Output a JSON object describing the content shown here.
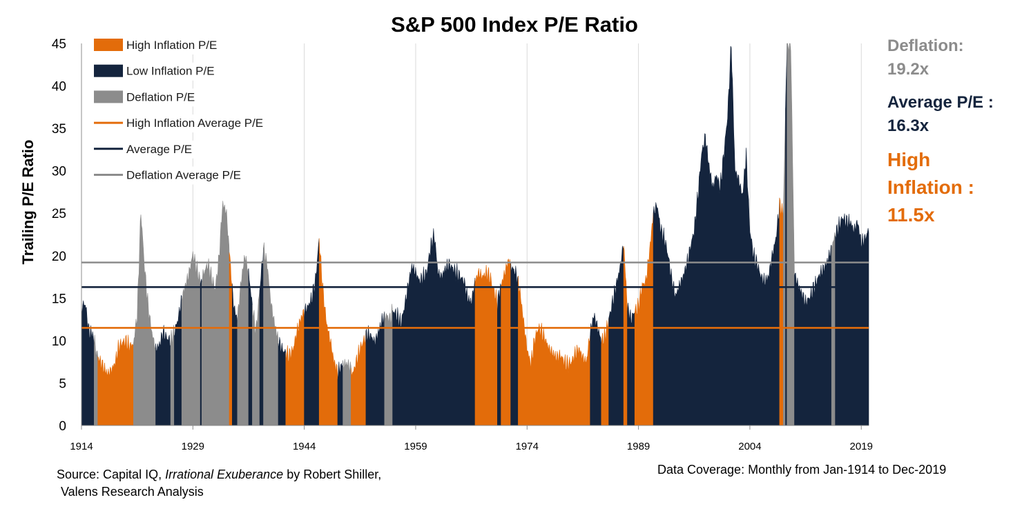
{
  "title": "S&P 500 Index P/E Ratio",
  "colors": {
    "high_inflation": "#e36c0a",
    "low_inflation": "#14243d",
    "deflation": "#8c8c8c"
  },
  "side_labels": {
    "deflation_label": "Deflation:",
    "deflation_value": "19.2x",
    "average_label": "Average P/E :",
    "average_value": "16.3x",
    "inflation_label_1": "High",
    "inflation_label_2": "Inflation :",
    "inflation_value": "11.5x"
  },
  "footer": {
    "source_prefix": "Source: Capital IQ, ",
    "source_italic": "Irrational Exuberance",
    "source_suffix": " by Robert Shiller,",
    "source_line2": "Valens Research Analysis",
    "coverage": "Data Coverage: Monthly from Jan-1914 to Dec-2019"
  },
  "chart_data": {
    "type": "area",
    "ylabel": "Trailing P/E Ratio",
    "xlabel": "",
    "ylim": [
      0,
      45
    ],
    "xlim": [
      1914,
      2020
    ],
    "yticks": [
      0,
      5,
      10,
      15,
      20,
      25,
      30,
      35,
      40,
      45
    ],
    "xticks": [
      1914,
      1929,
      1944,
      1959,
      1974,
      1989,
      2004,
      2019
    ],
    "x_gridlines": true,
    "legend_position": "top-left",
    "legend": [
      {
        "label": "High Inflation P/E",
        "kind": "area",
        "regime": "high"
      },
      {
        "label": "Low Inflation P/E",
        "kind": "area",
        "regime": "low"
      },
      {
        "label": "Deflation P/E",
        "kind": "area",
        "regime": "deflation"
      },
      {
        "label": "High Inflation Average P/E",
        "kind": "line",
        "regime": "high"
      },
      {
        "label": "Average P/E",
        "kind": "line",
        "regime": "low"
      },
      {
        "label": "Deflation Average P/E",
        "kind": "line",
        "regime": "deflation"
      }
    ],
    "reference_lines": [
      {
        "name": "Deflation Average P/E",
        "value": 19.2,
        "regime": "deflation"
      },
      {
        "name": "Average P/E",
        "value": 16.3,
        "regime": "low"
      },
      {
        "name": "High Inflation Average P/E",
        "value": 11.5,
        "regime": "high"
      }
    ],
    "pe_series": [
      [
        1914.0,
        13.9
      ],
      [
        1914.5,
        14.4
      ],
      [
        1915.0,
        11.0
      ],
      [
        1915.5,
        10.8
      ],
      [
        1916.0,
        8.6
      ],
      [
        1916.5,
        7.6
      ],
      [
        1917.0,
        6.8
      ],
      [
        1917.5,
        6.1
      ],
      [
        1918.0,
        6.5
      ],
      [
        1918.5,
        7.3
      ],
      [
        1919.0,
        9.2
      ],
      [
        1919.5,
        9.8
      ],
      [
        1920.0,
        9.9
      ],
      [
        1920.5,
        9.3
      ],
      [
        1921.0,
        9.7
      ],
      [
        1921.5,
        13.0
      ],
      [
        1922.0,
        25.2
      ],
      [
        1922.5,
        18.5
      ],
      [
        1923.0,
        13.8
      ],
      [
        1923.5,
        10.8
      ],
      [
        1924.0,
        9.0
      ],
      [
        1924.5,
        9.5
      ],
      [
        1925.0,
        11.0
      ],
      [
        1925.5,
        10.3
      ],
      [
        1926.0,
        10.0
      ],
      [
        1926.5,
        11.0
      ],
      [
        1927.0,
        12.5
      ],
      [
        1927.5,
        15.0
      ],
      [
        1928.0,
        16.5
      ],
      [
        1928.5,
        18.0
      ],
      [
        1929.0,
        20.2
      ],
      [
        1929.5,
        18.5
      ],
      [
        1930.0,
        17.0
      ],
      [
        1930.5,
        18.0
      ],
      [
        1931.0,
        19.0
      ],
      [
        1931.5,
        17.5
      ],
      [
        1932.0,
        16.0
      ],
      [
        1932.5,
        19.5
      ],
      [
        1933.0,
        26.1
      ],
      [
        1933.5,
        25.2
      ],
      [
        1934.0,
        19.5
      ],
      [
        1934.5,
        14.0
      ],
      [
        1935.0,
        12.5
      ],
      [
        1935.5,
        17.0
      ],
      [
        1936.0,
        20.0
      ],
      [
        1936.5,
        18.0
      ],
      [
        1937.0,
        14.0
      ],
      [
        1937.5,
        11.0
      ],
      [
        1938.0,
        16.0
      ],
      [
        1938.5,
        20.8
      ],
      [
        1939.0,
        19.0
      ],
      [
        1939.5,
        14.5
      ],
      [
        1940.0,
        12.0
      ],
      [
        1940.5,
        10.0
      ],
      [
        1941.0,
        9.0
      ],
      [
        1941.5,
        8.5
      ],
      [
        1942.0,
        8.2
      ],
      [
        1942.5,
        9.0
      ],
      [
        1943.0,
        11.0
      ],
      [
        1943.5,
        12.5
      ],
      [
        1944.0,
        13.5
      ],
      [
        1944.5,
        14.0
      ],
      [
        1945.0,
        15.0
      ],
      [
        1945.5,
        17.0
      ],
      [
        1946.0,
        22.0
      ],
      [
        1946.5,
        16.0
      ],
      [
        1947.0,
        12.0
      ],
      [
        1947.5,
        10.0
      ],
      [
        1948.0,
        7.5
      ],
      [
        1948.5,
        6.3
      ],
      [
        1949.0,
        7.0
      ],
      [
        1949.5,
        7.3
      ],
      [
        1950.0,
        7.2
      ],
      [
        1950.5,
        6.0
      ],
      [
        1951.0,
        7.5
      ],
      [
        1951.5,
        9.0
      ],
      [
        1952.0,
        10.0
      ],
      [
        1952.5,
        10.8
      ],
      [
        1953.0,
        10.5
      ],
      [
        1953.5,
        9.8
      ],
      [
        1954.0,
        11.0
      ],
      [
        1954.5,
        12.5
      ],
      [
        1955.0,
        13.0
      ],
      [
        1955.5,
        12.5
      ],
      [
        1956.0,
        13.5
      ],
      [
        1956.5,
        13.0
      ],
      [
        1957.0,
        12.0
      ],
      [
        1957.5,
        14.0
      ],
      [
        1958.0,
        16.5
      ],
      [
        1958.5,
        18.8
      ],
      [
        1959.0,
        18.0
      ],
      [
        1959.5,
        17.0
      ],
      [
        1960.0,
        17.5
      ],
      [
        1960.5,
        18.0
      ],
      [
        1961.0,
        21.0
      ],
      [
        1961.5,
        22.5
      ],
      [
        1962.0,
        18.0
      ],
      [
        1962.5,
        17.5
      ],
      [
        1963.0,
        18.5
      ],
      [
        1963.5,
        19.0
      ],
      [
        1964.0,
        18.5
      ],
      [
        1964.5,
        18.0
      ],
      [
        1965.0,
        17.5
      ],
      [
        1965.5,
        17.0
      ],
      [
        1966.0,
        15.0
      ],
      [
        1966.5,
        14.5
      ],
      [
        1967.0,
        17.0
      ],
      [
        1967.5,
        18.0
      ],
      [
        1968.0,
        17.5
      ],
      [
        1968.5,
        18.0
      ],
      [
        1969.0,
        17.5
      ],
      [
        1969.5,
        16.0
      ],
      [
        1970.0,
        14.5
      ],
      [
        1970.5,
        16.5
      ],
      [
        1971.0,
        18.0
      ],
      [
        1971.5,
        19.5
      ],
      [
        1972.0,
        18.5
      ],
      [
        1972.5,
        18.0
      ],
      [
        1973.0,
        16.0
      ],
      [
        1973.5,
        12.5
      ],
      [
        1974.0,
        9.0
      ],
      [
        1974.5,
        7.2
      ],
      [
        1975.0,
        10.0
      ],
      [
        1975.5,
        11.5
      ],
      [
        1976.0,
        11.0
      ],
      [
        1976.5,
        10.0
      ],
      [
        1977.0,
        9.0
      ],
      [
        1977.5,
        8.5
      ],
      [
        1978.0,
        8.0
      ],
      [
        1978.5,
        8.3
      ],
      [
        1979.0,
        7.5
      ],
      [
        1979.5,
        7.2
      ],
      [
        1980.0,
        7.5
      ],
      [
        1980.5,
        8.5
      ],
      [
        1981.0,
        9.0
      ],
      [
        1981.5,
        8.0
      ],
      [
        1982.0,
        7.5
      ],
      [
        1982.5,
        11.0
      ],
      [
        1983.0,
        13.0
      ],
      [
        1983.5,
        11.5
      ],
      [
        1984.0,
        10.0
      ],
      [
        1984.5,
        10.5
      ],
      [
        1985.0,
        12.5
      ],
      [
        1985.5,
        14.5
      ],
      [
        1986.0,
        16.5
      ],
      [
        1986.5,
        18.5
      ],
      [
        1987.0,
        21.5
      ],
      [
        1987.5,
        14.0
      ],
      [
        1988.0,
        12.5
      ],
      [
        1988.5,
        13.5
      ],
      [
        1989.0,
        14.0
      ],
      [
        1989.5,
        16.5
      ],
      [
        1990.0,
        17.0
      ],
      [
        1990.5,
        20.5
      ],
      [
        1991.0,
        25.0
      ],
      [
        1991.5,
        26.0
      ],
      [
        1992.0,
        23.0
      ],
      [
        1992.5,
        22.0
      ],
      [
        1993.0,
        20.0
      ],
      [
        1993.5,
        17.0
      ],
      [
        1994.0,
        15.2
      ],
      [
        1994.5,
        16.5
      ],
      [
        1995.0,
        17.5
      ],
      [
        1995.5,
        19.0
      ],
      [
        1996.0,
        21.0
      ],
      [
        1996.5,
        23.0
      ],
      [
        1997.0,
        27.0
      ],
      [
        1997.5,
        32.0
      ],
      [
        1998.0,
        34.0
      ],
      [
        1998.5,
        30.5
      ],
      [
        1999.0,
        28.0
      ],
      [
        1999.5,
        29.5
      ],
      [
        2000.0,
        28.0
      ],
      [
        2000.5,
        32.0
      ],
      [
        2001.0,
        36.5
      ],
      [
        2001.5,
        45.0
      ],
      [
        2002.0,
        30.0
      ],
      [
        2002.5,
        29.0
      ],
      [
        2003.0,
        27.0
      ],
      [
        2003.5,
        32.0
      ],
      [
        2004.0,
        23.0
      ],
      [
        2004.5,
        20.0
      ],
      [
        2005.0,
        19.0
      ],
      [
        2005.5,
        17.5
      ],
      [
        2006.0,
        17.0
      ],
      [
        2006.5,
        17.5
      ],
      [
        2007.0,
        20.0
      ],
      [
        2007.5,
        22.0
      ],
      [
        2008.0,
        26.0
      ],
      [
        2008.5,
        25.0
      ],
      [
        2009.0,
        45.0
      ],
      [
        2009.5,
        45.0
      ],
      [
        2010.0,
        18.0
      ],
      [
        2010.5,
        16.5
      ],
      [
        2011.0,
        15.5
      ],
      [
        2011.5,
        14.5
      ],
      [
        2012.0,
        15.0
      ],
      [
        2012.5,
        16.0
      ],
      [
        2013.0,
        17.0
      ],
      [
        2013.5,
        18.0
      ],
      [
        2014.0,
        18.5
      ],
      [
        2014.5,
        19.5
      ],
      [
        2015.0,
        21.0
      ],
      [
        2015.5,
        22.5
      ],
      [
        2016.0,
        23.5
      ],
      [
        2016.5,
        24.5
      ],
      [
        2017.0,
        24.0
      ],
      [
        2017.5,
        24.0
      ],
      [
        2018.0,
        23.0
      ],
      [
        2018.5,
        24.0
      ],
      [
        2019.0,
        21.5
      ],
      [
        2019.5,
        22.0
      ],
      [
        2019.99,
        23.0
      ]
    ],
    "regime_periods": [
      [
        1914.0,
        1915.7,
        "low"
      ],
      [
        1915.7,
        1916.2,
        "deflation"
      ],
      [
        1916.2,
        1921.0,
        "high"
      ],
      [
        1921.0,
        1924.0,
        "deflation"
      ],
      [
        1924.0,
        1926.0,
        "low"
      ],
      [
        1926.0,
        1926.5,
        "deflation"
      ],
      [
        1926.5,
        1927.5,
        "low"
      ],
      [
        1927.5,
        1930.0,
        "deflation"
      ],
      [
        1930.0,
        1930.2,
        "low"
      ],
      [
        1930.2,
        1933.9,
        "deflation"
      ],
      [
        1933.9,
        1934.3,
        "high"
      ],
      [
        1934.3,
        1935.0,
        "low"
      ],
      [
        1935.0,
        1936.5,
        "deflation"
      ],
      [
        1936.5,
        1937.0,
        "low"
      ],
      [
        1937.0,
        1938.0,
        "deflation"
      ],
      [
        1938.0,
        1938.5,
        "low"
      ],
      [
        1938.5,
        1940.5,
        "deflation"
      ],
      [
        1940.5,
        1941.5,
        "low"
      ],
      [
        1941.5,
        1944.0,
        "high"
      ],
      [
        1944.0,
        1946.0,
        "low"
      ],
      [
        1946.0,
        1948.5,
        "high"
      ],
      [
        1948.5,
        1949.2,
        "low"
      ],
      [
        1949.2,
        1950.3,
        "deflation"
      ],
      [
        1950.3,
        1952.3,
        "high"
      ],
      [
        1952.3,
        1954.8,
        "low"
      ],
      [
        1954.8,
        1955.9,
        "deflation"
      ],
      [
        1955.9,
        1967.0,
        "low"
      ],
      [
        1967.0,
        1970.0,
        "high"
      ],
      [
        1970.0,
        1970.5,
        "low"
      ],
      [
        1970.5,
        1971.8,
        "high"
      ],
      [
        1971.8,
        1972.8,
        "low"
      ],
      [
        1972.8,
        1982.5,
        "high"
      ],
      [
        1982.5,
        1984.0,
        "low"
      ],
      [
        1984.0,
        1985.0,
        "high"
      ],
      [
        1985.0,
        1987.0,
        "low"
      ],
      [
        1987.0,
        1987.5,
        "high"
      ],
      [
        1987.5,
        1988.5,
        "low"
      ],
      [
        1988.5,
        1991.0,
        "high"
      ],
      [
        1991.0,
        2008.0,
        "low"
      ],
      [
        2008.0,
        2008.5,
        "high"
      ],
      [
        2008.5,
        2008.8,
        "deflation"
      ],
      [
        2008.8,
        2009.0,
        "low"
      ],
      [
        2009.0,
        2010.0,
        "deflation"
      ],
      [
        2010.0,
        2015.0,
        "low"
      ],
      [
        2015.0,
        2015.5,
        "deflation"
      ],
      [
        2015.5,
        2020.0,
        "low"
      ]
    ]
  }
}
